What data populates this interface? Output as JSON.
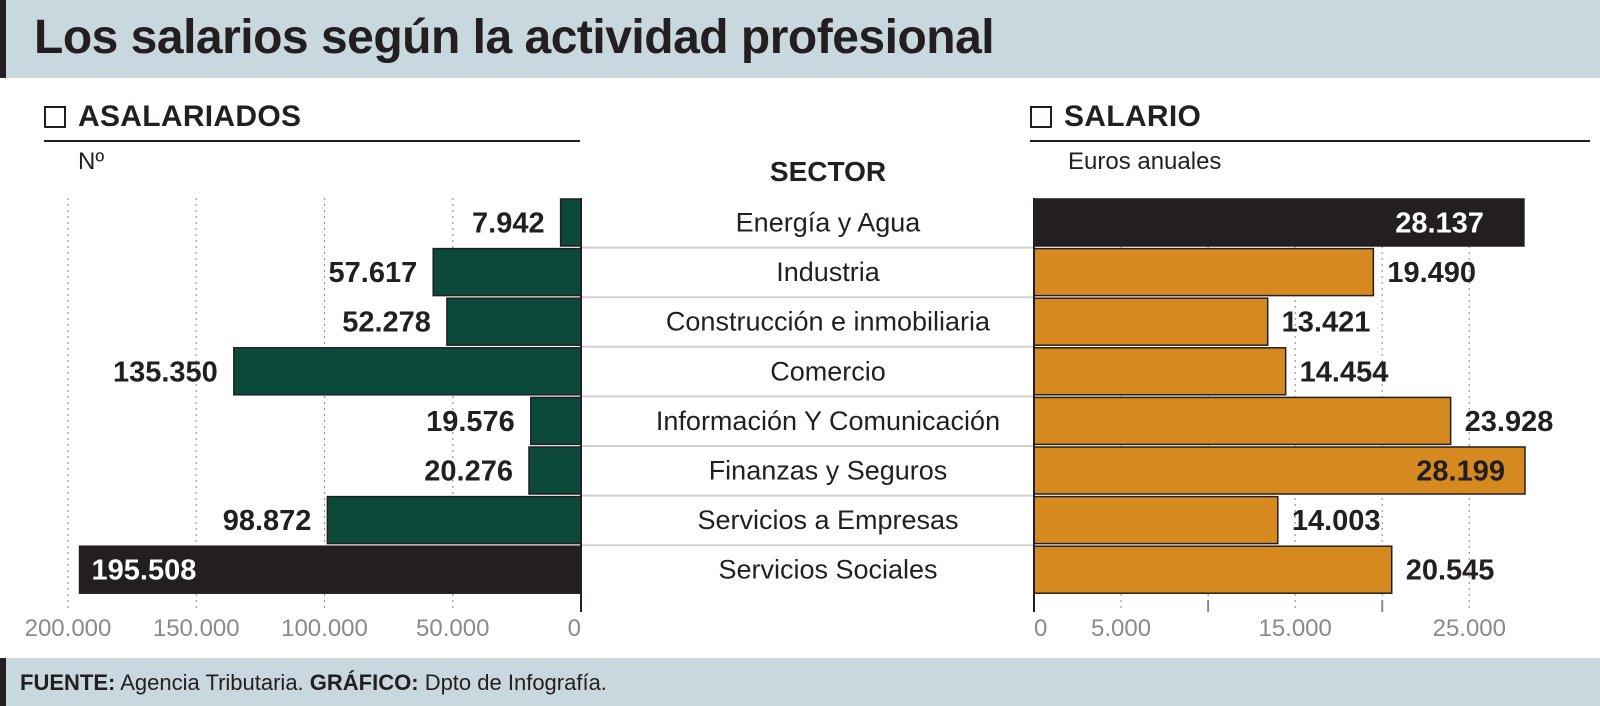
{
  "title": "Los salarios según la actividad profesional",
  "left_panel": {
    "heading": "ASALARIADOS",
    "unit": "Nº"
  },
  "right_panel": {
    "heading": "SALARIO",
    "unit": "Euros anuales"
  },
  "sector_heading": "SECTOR",
  "footer": {
    "source_label": "FUENTE:",
    "source_text": "Agencia Tributaria.",
    "graphic_label": "GRÁFICO:",
    "graphic_text": "Dpto de Infografía."
  },
  "colors": {
    "green": "#0b4a3a",
    "orange": "#d6891e",
    "black": "#231f20",
    "title_background": "#c9d7df"
  },
  "chart_data": [
    {
      "type": "bar",
      "orientation": "horizontal",
      "direction": "right-to-left",
      "title": "ASALARIADOS",
      "unit": "Nº",
      "categories": [
        "Energía y Agua",
        "Industria",
        "Construcción e inmobiliaria",
        "Comercio",
        "Información Y Comunicación",
        "Finanzas y Seguros",
        "Servicios a Empresas",
        "Servicios Sociales"
      ],
      "values": [
        7942,
        57617,
        52278,
        135350,
        19576,
        20276,
        98872,
        195508
      ],
      "value_labels": [
        "7.942",
        "57.617",
        "52.278",
        "135.350",
        "19.576",
        "20.276",
        "98.872",
        "195.508"
      ],
      "highlight_index": 7,
      "xlim": [
        0,
        200000
      ],
      "ticks": [
        0,
        50000,
        100000,
        150000,
        200000
      ],
      "tick_labels": [
        "0",
        "50.000",
        "100.000",
        "150.000",
        "200.000"
      ],
      "grid": true
    },
    {
      "type": "bar",
      "orientation": "horizontal",
      "direction": "left-to-right",
      "title": "SALARIO",
      "unit": "Euros anuales",
      "categories": [
        "Energía y Agua",
        "Industria",
        "Construcción e inmobiliaria",
        "Comercio",
        "Información Y Comunicación",
        "Finanzas y Seguros",
        "Servicios a Empresas",
        "Servicios Sociales"
      ],
      "values": [
        28137,
        19490,
        13421,
        14454,
        23928,
        28199,
        14003,
        20545
      ],
      "value_labels": [
        "28.137",
        "19.490",
        "13.421",
        "14.454",
        "23.928",
        "28.199",
        "14.003",
        "20.545"
      ],
      "highlight_index": 0,
      "xlim": [
        0,
        28000
      ],
      "ticks": [
        0,
        5000,
        15000,
        25000
      ],
      "tick_labels": [
        "0",
        "5.000",
        "15.000",
        "25.000"
      ],
      "minor_ticks": [
        10000,
        20000
      ],
      "grid": true
    }
  ]
}
